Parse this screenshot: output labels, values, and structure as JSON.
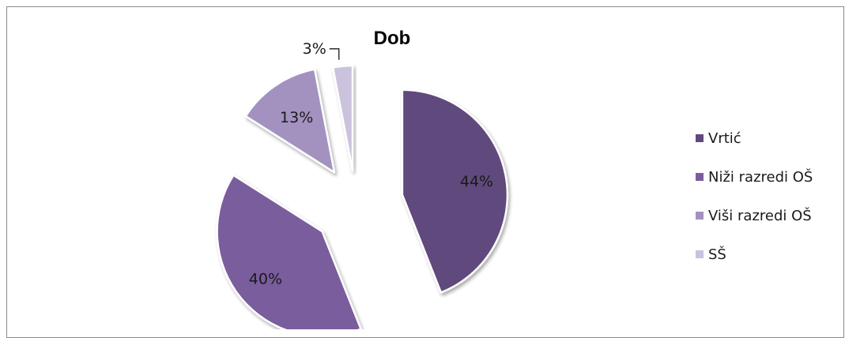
{
  "chart_data": {
    "type": "pie",
    "title": "Dob",
    "categories": [
      "Vrtić",
      "Niži razredi OŠ",
      "Viši razredi OŠ",
      "SŠ"
    ],
    "values": [
      44,
      40,
      13,
      3
    ],
    "data_labels": [
      "44%",
      "40%",
      "13%",
      "3%"
    ],
    "colors": [
      "#604a7b",
      "#7a5d9d",
      "#a392c0",
      "#cbc2dd"
    ],
    "exploded": true,
    "legend_position": "right"
  }
}
